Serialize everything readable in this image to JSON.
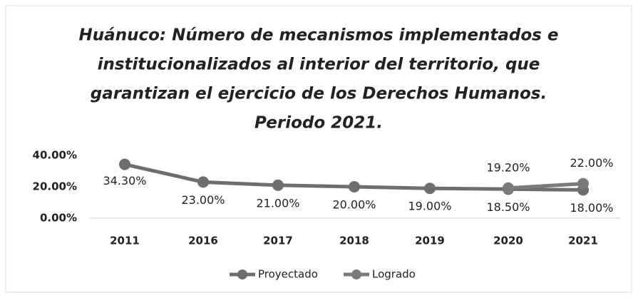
{
  "chart_data": {
    "type": "line",
    "title": [
      "Huánuco: Número de mecanismos implementados e",
      "institucionalizados al interior del territorio, que",
      "garantizan el ejercicio de los Derechos Humanos.",
      "Periodo 2021."
    ],
    "categories": [
      "2011",
      "2016",
      "2017",
      "2018",
      "2019",
      "2020",
      "2021"
    ],
    "series": [
      {
        "name": "Proyectado",
        "color": "#6e6e6e",
        "values": [
          34.3,
          23.0,
          21.0,
          20.0,
          19.0,
          18.5,
          18.0
        ],
        "value_labels": [
          "34.30%",
          "23.00%",
          "21.00%",
          "20.00%",
          "19.00%",
          "18.50%",
          "18.00%"
        ]
      },
      {
        "name": "Logrado",
        "color": "#7a7a7a",
        "values": [
          null,
          null,
          null,
          null,
          null,
          19.2,
          22.0
        ],
        "value_labels": [
          null,
          null,
          null,
          null,
          null,
          "19.20%",
          "22.00%"
        ]
      }
    ],
    "ylim": [
      0,
      40
    ],
    "yticks": [
      {
        "value": 0,
        "label": "0.00%"
      },
      {
        "value": 20,
        "label": "20.00%"
      },
      {
        "value": 40,
        "label": "40.00%"
      }
    ],
    "legend": "bottom"
  }
}
